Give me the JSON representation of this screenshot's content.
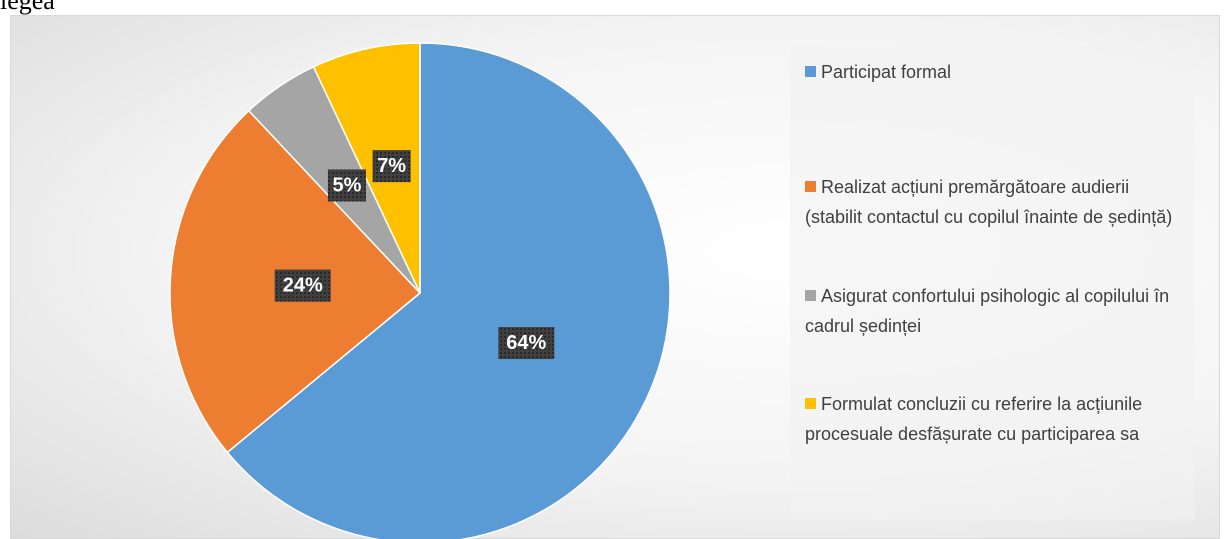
{
  "page_fragment": "legea",
  "chart_data": {
    "type": "pie",
    "categories": [
      "Participat formal",
      "Realizat acțiuni premărgătoare audierii (stabilit contactul cu copilul înainte de ședință)",
      "Asigurat confortului psihologic al copilului în cadrul ședinței",
      "Formulat concluzii cu referire la acțiunile procesuale desfășurate cu participarea sa"
    ],
    "values": [
      64,
      24,
      5,
      7
    ],
    "value_labels": [
      "64%",
      "24%",
      "5%",
      "7%"
    ],
    "colors": [
      "#5b9bd5",
      "#ed7d31",
      "#a5a5a5",
      "#ffc000"
    ],
    "legend": "right"
  }
}
